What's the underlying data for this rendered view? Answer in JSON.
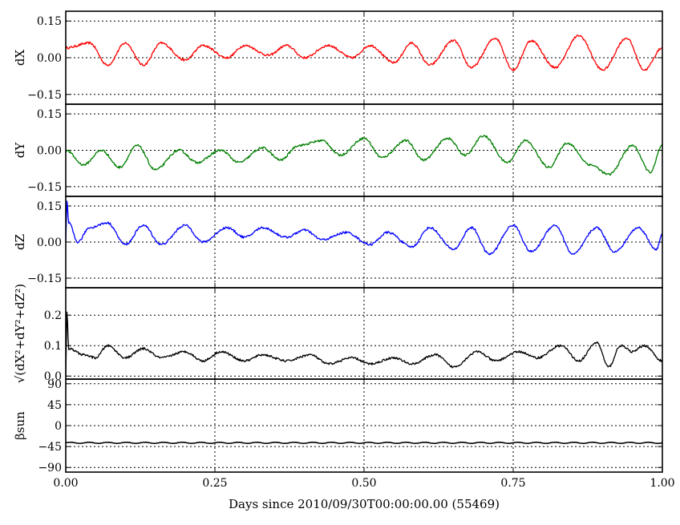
{
  "chart_data": {
    "type": "line",
    "xlabel": "Days since 2010/09/30T00:00:00.00 (55469)",
    "x_range": [
      0,
      1.0
    ],
    "x_ticks": [
      0.0,
      0.25,
      0.5,
      0.75,
      1.0
    ],
    "x_tick_labels": [
      "0.00",
      "0.25",
      "0.50",
      "0.75",
      "1.00"
    ],
    "grid": true,
    "panels": [
      {
        "ylabel": "dX",
        "ylim": [
          -0.19,
          0.19
        ],
        "y_ticks": [
          0.15,
          0.0,
          -0.15
        ],
        "y_tick_labels": [
          "0.15",
          "0.00",
          "−0.15"
        ],
        "color": "#ff0000",
        "series": {
          "x": [
            0.0,
            0.04,
            0.07,
            0.1,
            0.13,
            0.16,
            0.2,
            0.23,
            0.27,
            0.3,
            0.34,
            0.37,
            0.4,
            0.44,
            0.48,
            0.51,
            0.55,
            0.58,
            0.61,
            0.65,
            0.68,
            0.72,
            0.75,
            0.78,
            0.82,
            0.86,
            0.9,
            0.94,
            0.97,
            1.0
          ],
          "y": [
            0.04,
            0.06,
            -0.03,
            0.06,
            -0.03,
            0.06,
            -0.01,
            0.05,
            0.0,
            0.05,
            0.01,
            0.05,
            0.0,
            0.05,
            0.0,
            0.05,
            -0.02,
            0.06,
            -0.03,
            0.07,
            -0.04,
            0.08,
            -0.05,
            0.07,
            -0.04,
            0.09,
            -0.05,
            0.08,
            -0.05,
            0.04
          ]
        }
      },
      {
        "ylabel": "dY",
        "ylim": [
          -0.19,
          0.19
        ],
        "y_ticks": [
          0.15,
          0.0,
          -0.15
        ],
        "y_tick_labels": [
          "0.15",
          "0.00",
          "−0.15"
        ],
        "color": "#007f00",
        "series": {
          "x": [
            0.0,
            0.03,
            0.06,
            0.09,
            0.12,
            0.15,
            0.19,
            0.22,
            0.26,
            0.29,
            0.33,
            0.36,
            0.39,
            0.43,
            0.46,
            0.5,
            0.53,
            0.57,
            0.6,
            0.64,
            0.67,
            0.7,
            0.74,
            0.77,
            0.81,
            0.84,
            0.88,
            0.91,
            0.95,
            0.98,
            1.0
          ],
          "y": [
            0.0,
            -0.06,
            0.0,
            -0.07,
            0.02,
            -0.08,
            0.0,
            -0.05,
            0.0,
            -0.05,
            0.01,
            -0.04,
            0.02,
            0.04,
            -0.02,
            0.05,
            -0.03,
            0.04,
            -0.04,
            0.05,
            -0.02,
            0.06,
            -0.05,
            0.04,
            -0.07,
            0.03,
            -0.06,
            -0.1,
            0.02,
            -0.09,
            0.02
          ]
        }
      },
      {
        "ylabel": "dZ",
        "ylim": [
          -0.19,
          0.19
        ],
        "y_ticks": [
          0.15,
          0.0,
          -0.15
        ],
        "y_tick_labels": [
          "0.15",
          "0.00",
          "−0.15"
        ],
        "color": "#0000ff",
        "series": {
          "x": [
            0.0,
            0.002,
            0.005,
            0.02,
            0.04,
            0.07,
            0.1,
            0.13,
            0.16,
            0.2,
            0.23,
            0.27,
            0.3,
            0.33,
            0.37,
            0.4,
            0.43,
            0.47,
            0.51,
            0.54,
            0.58,
            0.61,
            0.65,
            0.68,
            0.71,
            0.75,
            0.78,
            0.82,
            0.85,
            0.89,
            0.92,
            0.96,
            0.99,
            1.0
          ],
          "y": [
            0.0,
            0.17,
            0.08,
            0.0,
            0.06,
            0.08,
            -0.01,
            0.07,
            -0.01,
            0.07,
            0.0,
            0.06,
            0.02,
            0.06,
            0.02,
            0.05,
            0.01,
            0.04,
            -0.01,
            0.04,
            -0.02,
            0.06,
            -0.03,
            0.06,
            -0.05,
            0.07,
            -0.04,
            0.07,
            -0.05,
            0.06,
            -0.04,
            0.06,
            -0.03,
            0.03
          ]
        }
      },
      {
        "ylabel": "√(dX²+dY²+dZ²)",
        "ylim": [
          -0.01,
          0.29
        ],
        "y_ticks": [
          0.2,
          0.1,
          0.0
        ],
        "y_tick_labels": [
          "0.2",
          "0.1",
          "0.0"
        ],
        "color": "#000000",
        "series": {
          "x": [
            0.0,
            0.002,
            0.005,
            0.03,
            0.05,
            0.07,
            0.1,
            0.13,
            0.16,
            0.2,
            0.23,
            0.26,
            0.3,
            0.33,
            0.37,
            0.41,
            0.44,
            0.48,
            0.51,
            0.55,
            0.58,
            0.62,
            0.65,
            0.69,
            0.72,
            0.76,
            0.79,
            0.83,
            0.86,
            0.89,
            0.91,
            0.93,
            0.95,
            0.97,
            1.0
          ],
          "y": [
            0.0,
            0.21,
            0.09,
            0.07,
            0.06,
            0.1,
            0.06,
            0.09,
            0.06,
            0.08,
            0.05,
            0.08,
            0.05,
            0.07,
            0.05,
            0.07,
            0.04,
            0.06,
            0.04,
            0.06,
            0.04,
            0.07,
            0.03,
            0.08,
            0.05,
            0.08,
            0.06,
            0.1,
            0.05,
            0.11,
            0.03,
            0.1,
            0.08,
            0.1,
            0.05
          ]
        }
      },
      {
        "ylabel": "βsun",
        "ylim": [
          -100,
          100
        ],
        "y_ticks": [
          90,
          45,
          0,
          -45,
          -90
        ],
        "y_tick_labels": [
          "90",
          "45",
          "0",
          "−45",
          "−90"
        ],
        "color": "#000000",
        "series": {
          "x": [
            0.0,
            1.0
          ],
          "y": [
            -37,
            -37
          ],
          "ripple_amplitude": 1.2,
          "ripple_cycles": 32
        }
      }
    ]
  }
}
